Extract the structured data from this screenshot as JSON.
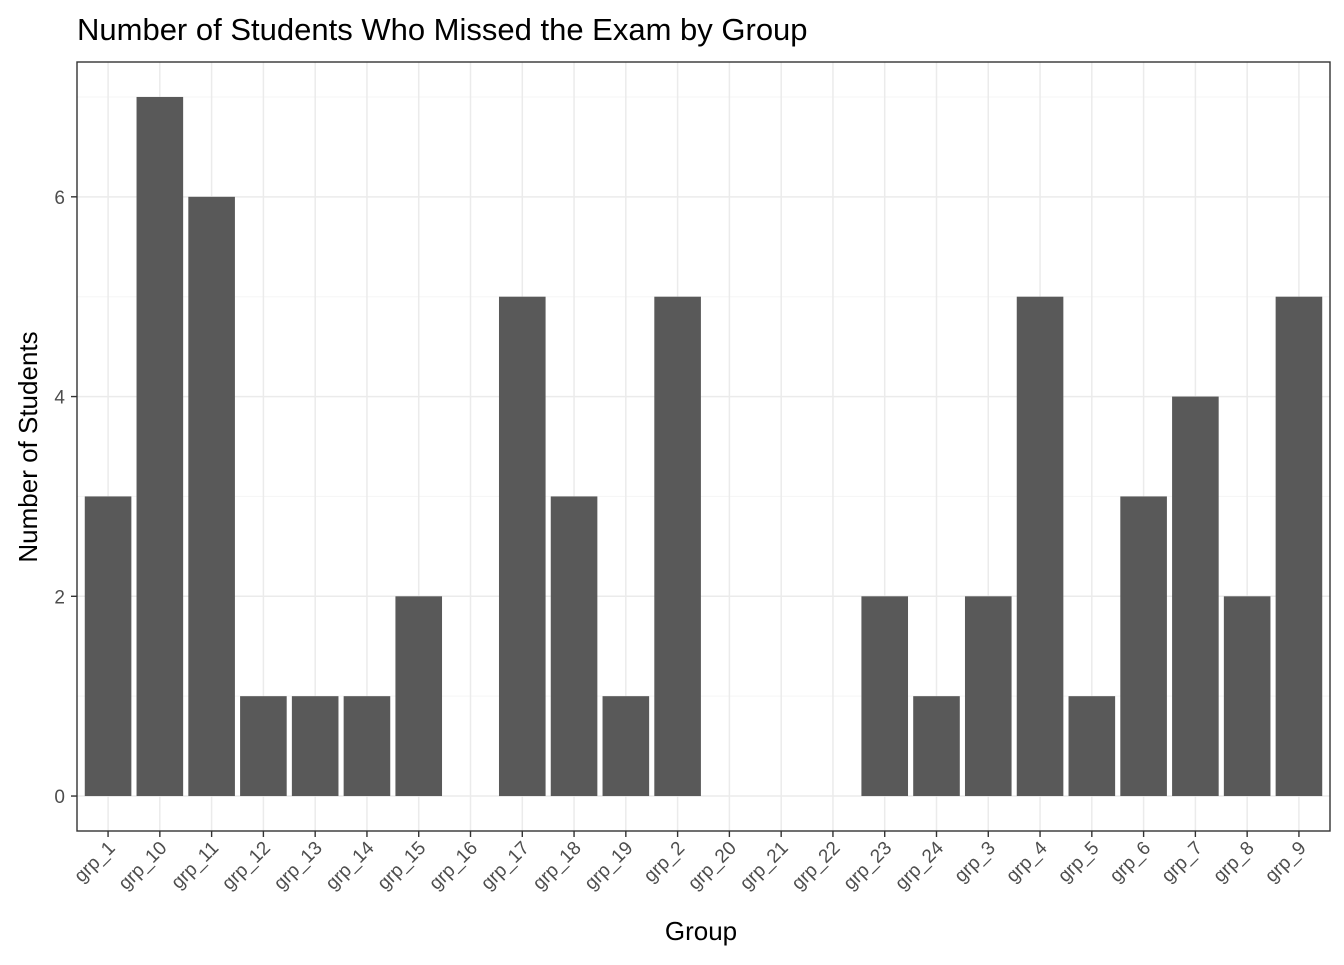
{
  "chart_data": {
    "type": "bar",
    "title": "Number of Students Who Missed the Exam by Group",
    "xlabel": "Group",
    "ylabel": "Number of Students",
    "categories": [
      "grp_1",
      "grp_10",
      "grp_11",
      "grp_12",
      "grp_13",
      "grp_14",
      "grp_15",
      "grp_16",
      "grp_17",
      "grp_18",
      "grp_19",
      "grp_2",
      "grp_20",
      "grp_21",
      "grp_22",
      "grp_23",
      "grp_24",
      "grp_3",
      "grp_4",
      "grp_5",
      "grp_6",
      "grp_7",
      "grp_8",
      "grp_9"
    ],
    "values": [
      3,
      7,
      6,
      1,
      1,
      1,
      2,
      0,
      5,
      3,
      1,
      5,
      0,
      0,
      0,
      2,
      1,
      2,
      5,
      1,
      3,
      4,
      2,
      5
    ],
    "ylim": [
      -0.35,
      7.35
    ],
    "yticks": [
      0,
      2,
      4,
      6
    ],
    "grid": true,
    "legend": "none",
    "colors": {
      "bar": "#595959",
      "grid_major": "#ebebeb",
      "grid_minor": "#f5f5f5",
      "panel_border": "#333333",
      "tick_text": "#4d4d4d"
    }
  }
}
